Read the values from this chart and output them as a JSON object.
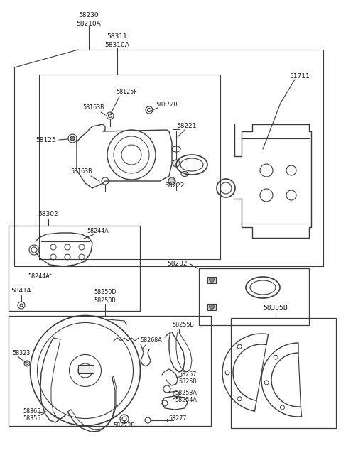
{
  "bg_color": "#ffffff",
  "line_color": "#3a3a3a",
  "text_color": "#1a1a1a",
  "fig_width": 4.8,
  "fig_height": 6.55,
  "dpi": 100,
  "labels": {
    "top_label1": "58230",
    "top_label2": "58210A",
    "inner_top1": "58311",
    "inner_top2": "58310A",
    "label_58125F": "58125F",
    "label_58163B_top": "58163B",
    "label_58172B": "58172B",
    "label_58125": "58125",
    "label_58163B_bot": "58163B",
    "label_58221": "58221",
    "label_58222": "58222",
    "label_51711": "51711",
    "label_58302": "58302",
    "label_58244A_top": "58244A",
    "label_58244A_bot": "58244A",
    "label_58202": "58202",
    "label_58414": "58414",
    "label_58250D": "58250D",
    "label_58250R": "58250R",
    "label_58323": "58323",
    "label_58268A": "58268A",
    "label_58255B": "58255B",
    "label_58257": "58257",
    "label_58258": "58258",
    "label_58253A": "58253A",
    "label_58254A": "58254A",
    "label_58277": "58277",
    "label_58272B": "58272B",
    "label_58365": "58365",
    "label_58355": "58355",
    "label_58305B": "58305B"
  },
  "font_size": 6.5,
  "font_size_small": 5.8
}
